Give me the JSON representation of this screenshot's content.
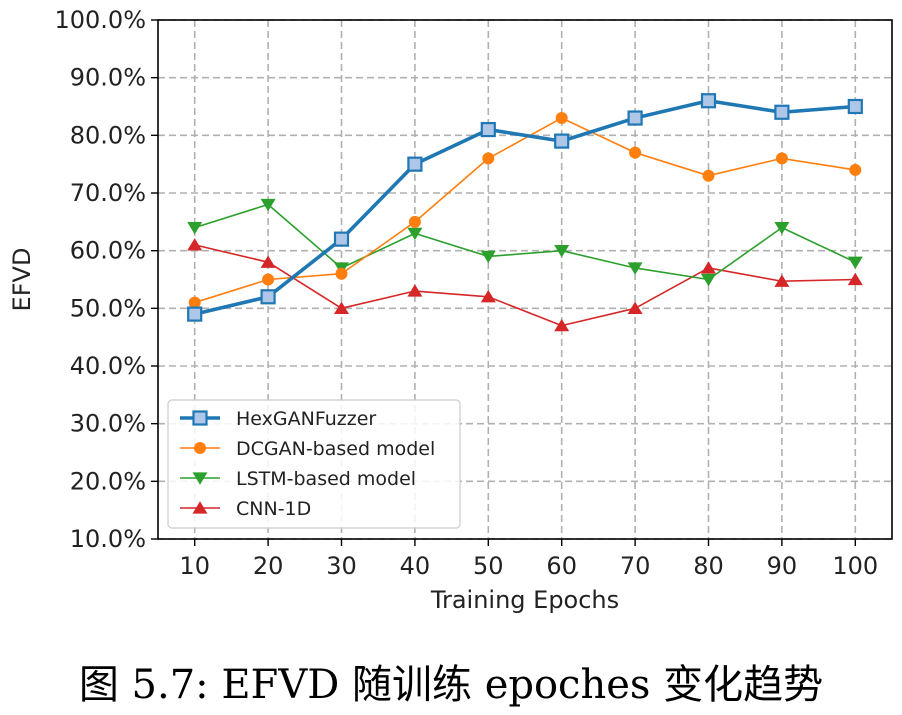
{
  "caption": "图 5.7: EFVD 随训练 epoches 变化趋势",
  "chart_data": {
    "type": "line",
    "title": "",
    "xlabel": "Training Epochs",
    "ylabel": "EFVD",
    "x": [
      10,
      20,
      30,
      40,
      50,
      60,
      70,
      80,
      90,
      100
    ],
    "x_tick_labels": [
      "10",
      "20",
      "30",
      "40",
      "50",
      "60",
      "70",
      "80",
      "90",
      "100"
    ],
    "ylim": [
      10,
      100
    ],
    "y_ticks": [
      10,
      20,
      30,
      40,
      50,
      60,
      70,
      80,
      90,
      100
    ],
    "y_tick_labels": [
      "10.0%",
      "20.0%",
      "30.0%",
      "40.0%",
      "50.0%",
      "60.0%",
      "70.0%",
      "80.0%",
      "90.0%",
      "100.0%"
    ],
    "y_unit": "percent",
    "grid": true,
    "legend_position": "lower-left",
    "series": [
      {
        "name": "HexGANFuzzer",
        "color": "#1f77b4",
        "marker": "square",
        "marker_fill": "#aec7e8",
        "values": [
          49,
          52,
          62,
          75,
          81,
          79,
          83,
          86,
          84,
          85
        ]
      },
      {
        "name": "DCGAN-based model",
        "color": "#ff7f0e",
        "marker": "circle",
        "values": [
          51,
          55,
          56,
          65,
          76,
          83,
          77,
          73,
          76,
          74
        ]
      },
      {
        "name": "LSTM-based model",
        "color": "#2ca02c",
        "marker": "triangle-down",
        "values": [
          64,
          68,
          57,
          63,
          59,
          60,
          57,
          55,
          64,
          58
        ]
      },
      {
        "name": "CNN-1D",
        "color": "#d62728",
        "marker": "triangle-up",
        "values": [
          61,
          58,
          50,
          53,
          52,
          47,
          50,
          57,
          54.7,
          55
        ]
      }
    ]
  }
}
